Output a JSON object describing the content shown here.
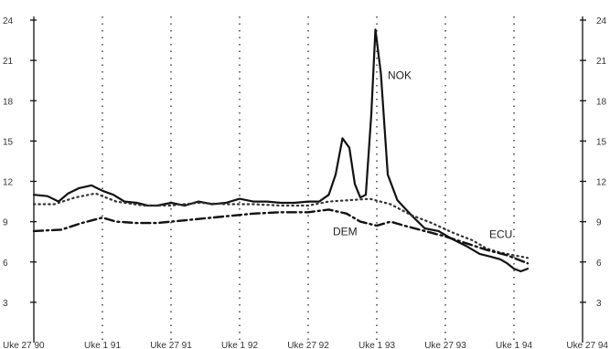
{
  "chart_data": {
    "type": "line",
    "title": "",
    "xlabel": "",
    "ylabel": "",
    "ylim": [
      0,
      24
    ],
    "yticks": [
      3,
      6,
      9,
      12,
      15,
      18,
      21,
      24
    ],
    "grid": "vertical-dotted",
    "xticks": [
      {
        "t": 0,
        "label": "Uke 27 90"
      },
      {
        "t": 0.5,
        "label": "Uke 1 91"
      },
      {
        "t": 1,
        "label": "Uke 27 91"
      },
      {
        "t": 1.5,
        "label": "Uke 1 92"
      },
      {
        "t": 2,
        "label": "Uke 27 92"
      },
      {
        "t": 2.5,
        "label": "Uke 1 93"
      },
      {
        "t": 3,
        "label": "Uke 27 93"
      },
      {
        "t": 3.5,
        "label": "Uke 1 94"
      },
      {
        "t": 4,
        "label": "Uke 27 94"
      }
    ],
    "series": [
      {
        "name": "NOK",
        "color": "#111111",
        "style": "solid",
        "points": [
          [
            0,
            11.0
          ],
          [
            0.1,
            10.9
          ],
          [
            0.18,
            10.5
          ],
          [
            0.25,
            11.1
          ],
          [
            0.33,
            11.5
          ],
          [
            0.42,
            11.7
          ],
          [
            0.5,
            11.3
          ],
          [
            0.58,
            11.0
          ],
          [
            0.66,
            10.5
          ],
          [
            0.75,
            10.4
          ],
          [
            0.83,
            10.2
          ],
          [
            0.9,
            10.2
          ],
          [
            1,
            10.4
          ],
          [
            1.1,
            10.2
          ],
          [
            1.2,
            10.5
          ],
          [
            1.3,
            10.3
          ],
          [
            1.4,
            10.4
          ],
          [
            1.5,
            10.7
          ],
          [
            1.6,
            10.5
          ],
          [
            1.7,
            10.5
          ],
          [
            1.8,
            10.4
          ],
          [
            1.9,
            10.4
          ],
          [
            2,
            10.5
          ],
          [
            2.08,
            10.5
          ],
          [
            2.15,
            11.0
          ],
          [
            2.2,
            12.5
          ],
          [
            2.25,
            15.2
          ],
          [
            2.3,
            14.5
          ],
          [
            2.34,
            11.8
          ],
          [
            2.38,
            10.8
          ],
          [
            2.42,
            11.0
          ],
          [
            2.46,
            17.0
          ],
          [
            2.49,
            23.3
          ],
          [
            2.53,
            20.0
          ],
          [
            2.58,
            12.5
          ],
          [
            2.65,
            10.6
          ],
          [
            2.75,
            9.5
          ],
          [
            2.85,
            8.5
          ],
          [
            2.95,
            8.3
          ],
          [
            3.05,
            7.7
          ],
          [
            3.15,
            7.2
          ],
          [
            3.25,
            6.6
          ],
          [
            3.33,
            6.4
          ],
          [
            3.4,
            6.2
          ],
          [
            3.45,
            5.9
          ],
          [
            3.5,
            5.5
          ],
          [
            3.55,
            5.3
          ],
          [
            3.6,
            5.5
          ]
        ]
      },
      {
        "name": "ECU",
        "color": "#333333",
        "style": "dotted",
        "points": [
          [
            0,
            10.3
          ],
          [
            0.15,
            10.3
          ],
          [
            0.3,
            10.8
          ],
          [
            0.45,
            11.1
          ],
          [
            0.6,
            10.5
          ],
          [
            0.8,
            10.2
          ],
          [
            1,
            10.2
          ],
          [
            1.2,
            10.4
          ],
          [
            1.4,
            10.3
          ],
          [
            1.6,
            10.3
          ],
          [
            1.8,
            10.2
          ],
          [
            2,
            10.2
          ],
          [
            2.15,
            10.5
          ],
          [
            2.3,
            10.6
          ],
          [
            2.45,
            10.7
          ],
          [
            2.6,
            10.3
          ],
          [
            2.75,
            9.5
          ],
          [
            2.9,
            8.9
          ],
          [
            3.05,
            8.2
          ],
          [
            3.2,
            7.6
          ],
          [
            3.3,
            7.0
          ],
          [
            3.4,
            6.7
          ],
          [
            3.5,
            6.5
          ],
          [
            3.6,
            6.3
          ]
        ]
      },
      {
        "name": "DEM",
        "color": "#111111",
        "style": "dashdot",
        "points": [
          [
            0,
            8.3
          ],
          [
            0.2,
            8.4
          ],
          [
            0.35,
            8.9
          ],
          [
            0.5,
            9.3
          ],
          [
            0.6,
            9.0
          ],
          [
            0.75,
            8.9
          ],
          [
            0.9,
            8.9
          ],
          [
            1,
            9.0
          ],
          [
            1.2,
            9.2
          ],
          [
            1.4,
            9.4
          ],
          [
            1.6,
            9.6
          ],
          [
            1.8,
            9.7
          ],
          [
            2,
            9.7
          ],
          [
            2.15,
            9.9
          ],
          [
            2.28,
            9.6
          ],
          [
            2.38,
            9.0
          ],
          [
            2.5,
            8.7
          ],
          [
            2.6,
            9.0
          ],
          [
            2.7,
            8.7
          ],
          [
            2.85,
            8.3
          ],
          [
            3,
            7.9
          ],
          [
            3.15,
            7.4
          ],
          [
            3.3,
            6.9
          ],
          [
            3.45,
            6.5
          ],
          [
            3.6,
            5.9
          ]
        ]
      }
    ],
    "labels": [
      {
        "series": "NOK",
        "text": "NOK",
        "at": [
          2.58,
          19.6
        ]
      },
      {
        "series": "DEM",
        "text": "DEM",
        "at": [
          2.18,
          8.0
        ]
      },
      {
        "series": "ECU",
        "text": "ECU",
        "at": [
          3.32,
          7.8
        ]
      }
    ]
  }
}
